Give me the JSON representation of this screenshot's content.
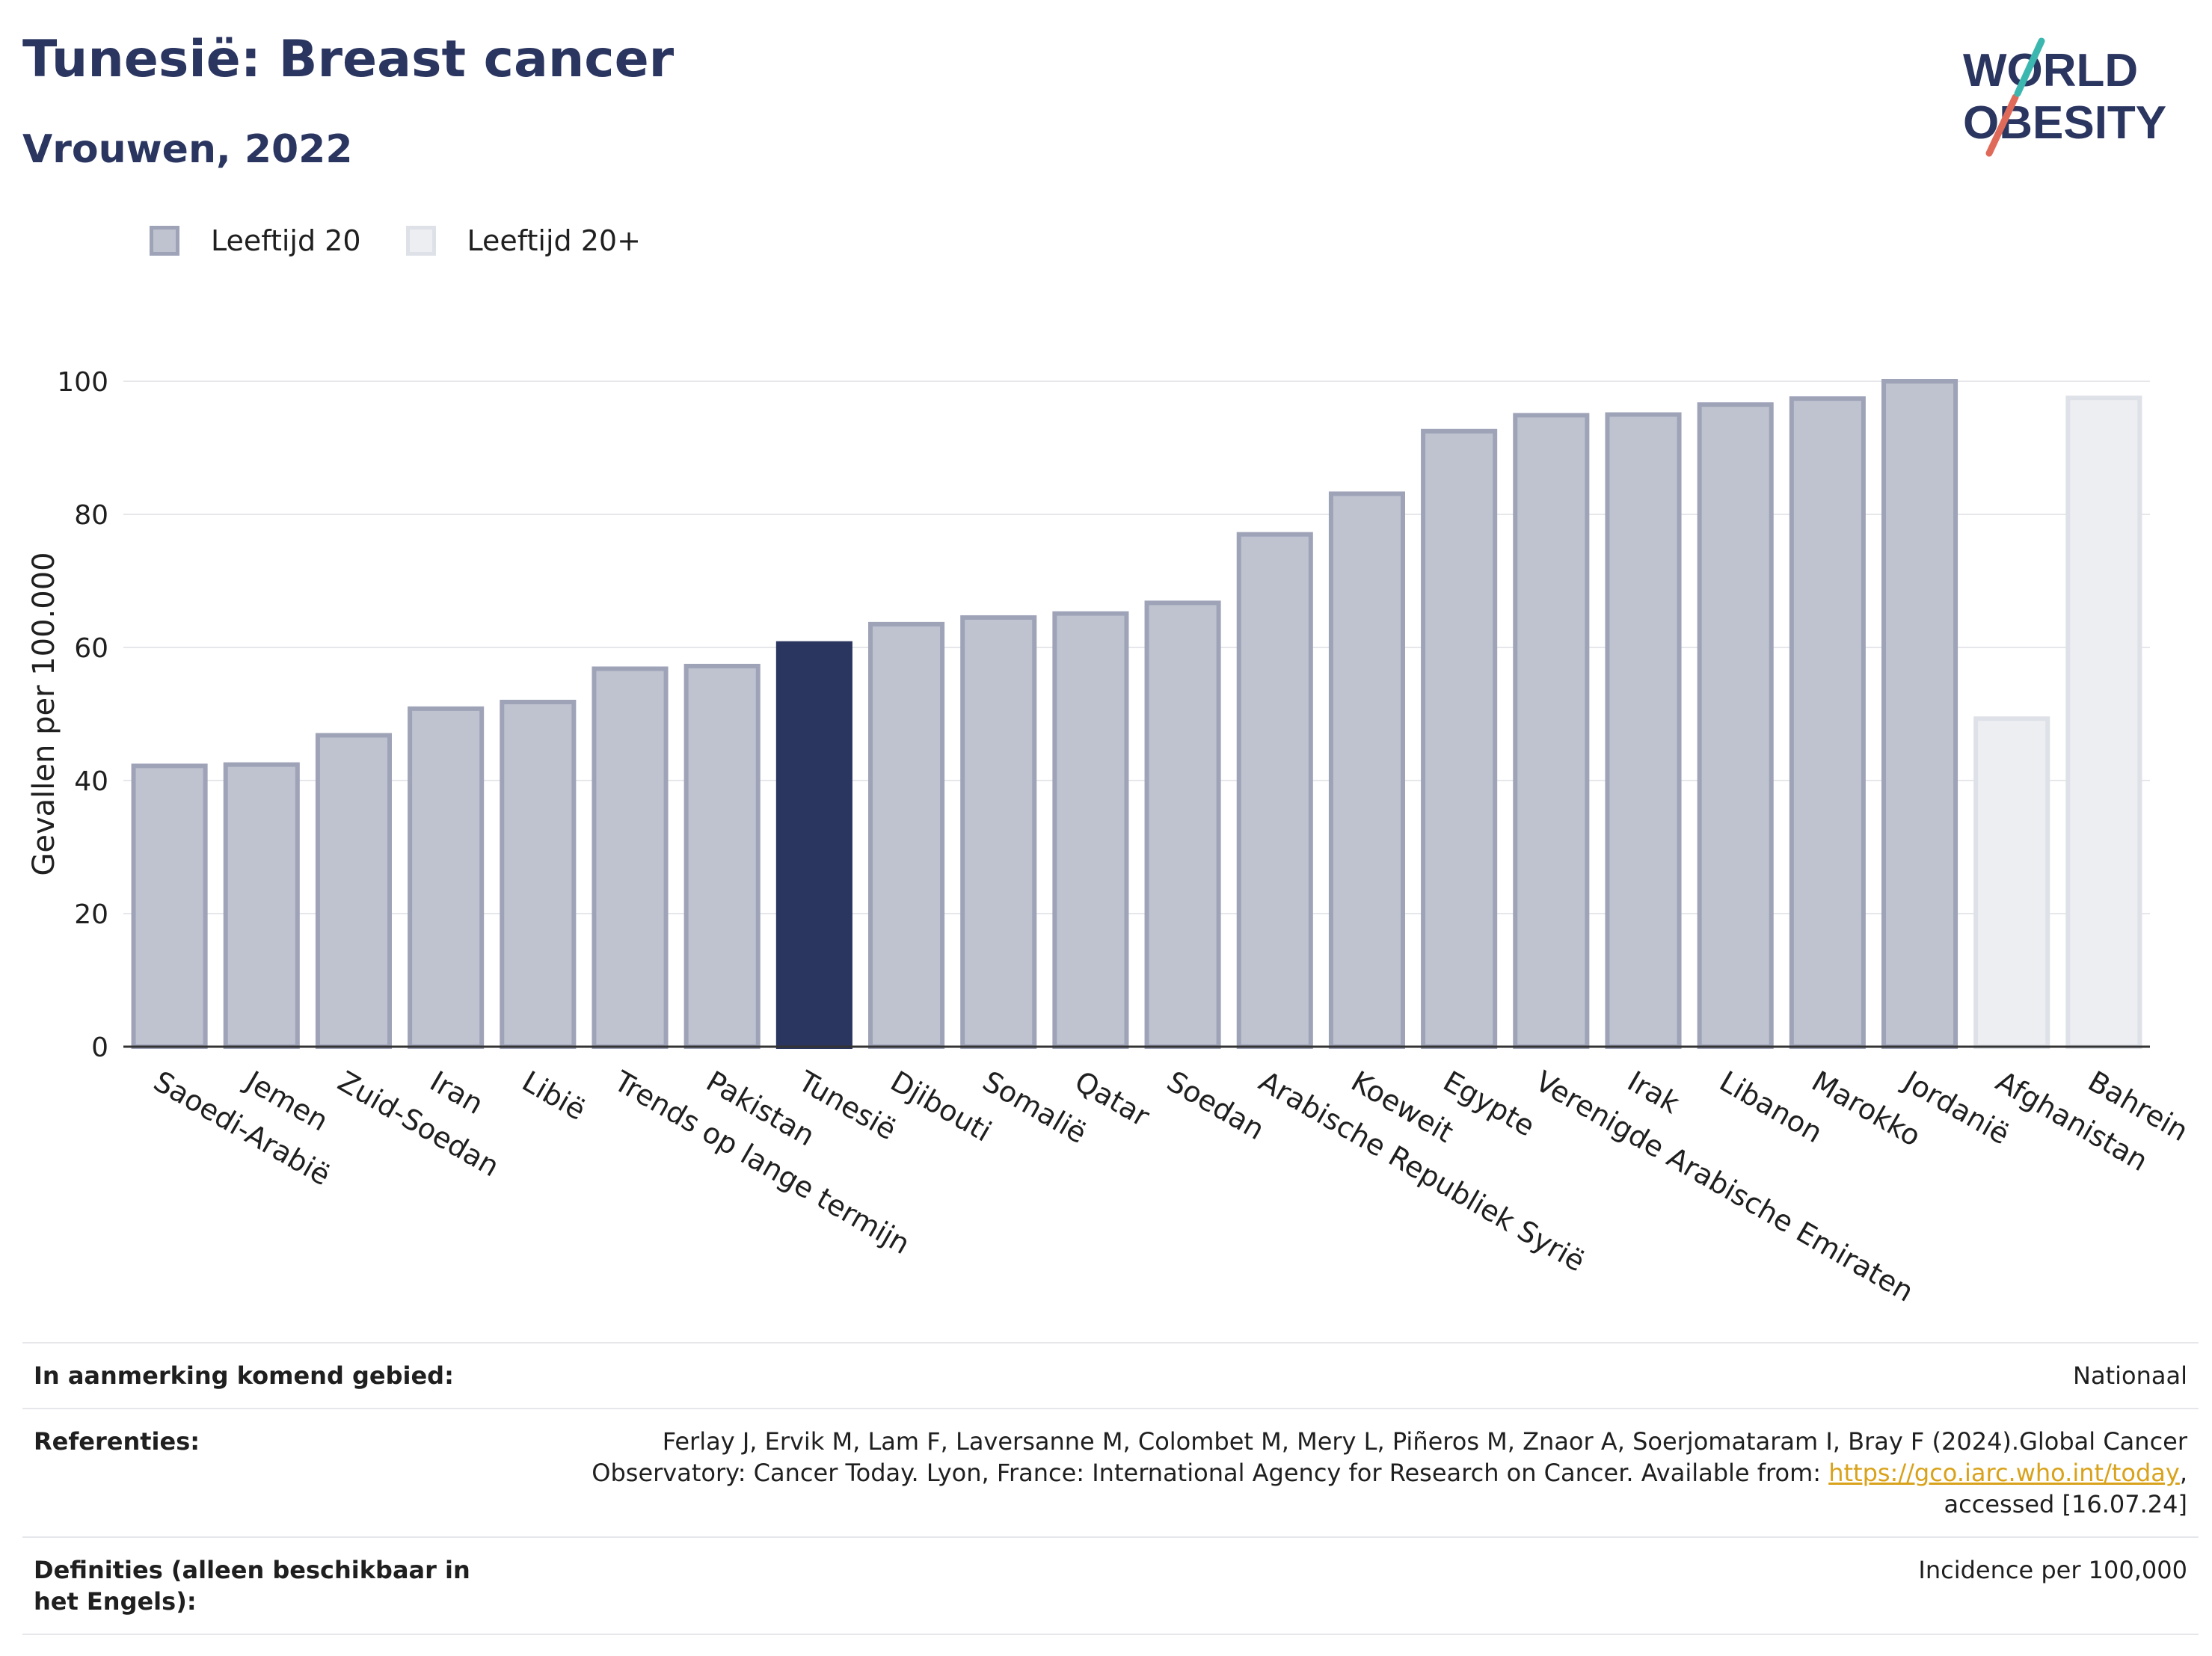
{
  "header": {
    "title": "Tunesië: Breast cancer",
    "subtitle": "Vrouwen, 2022"
  },
  "logo": {
    "line1": "WORLD",
    "line2": "OBESITY"
  },
  "legend": [
    {
      "label": "Leeftijd 20",
      "color": "#bfc3d0"
    },
    {
      "label": "Leeftijd 20+",
      "color": "#eceef2"
    }
  ],
  "chart_data": {
    "type": "bar",
    "ylabel": "Gevallen per 100.000",
    "ylim": [
      0,
      100
    ],
    "yticks": [
      0,
      20,
      40,
      60,
      80,
      100
    ],
    "grid": true,
    "legend_position": "top-left",
    "categories": [
      "Saoedi-Arabië",
      "Jemen",
      "Zuid-Soedan",
      "Iran",
      "Libië",
      "Trends op lange termijn",
      "Pakistan",
      "Tunesië",
      "Djibouti",
      "Somalië",
      "Qatar",
      "Soedan",
      "Arabische Republiek Syrië",
      "Koeweit",
      "Egypte",
      "Verenigde Arabische Emiraten",
      "Irak",
      "Libanon",
      "Marokko",
      "Jordanië",
      "Afghanistan",
      "Bahrein"
    ],
    "values": [
      42.2,
      42.4,
      46.8,
      50.8,
      51.8,
      56.8,
      57.2,
      60.6,
      63.5,
      64.5,
      65.1,
      66.7,
      77.0,
      83.1,
      92.5,
      94.9,
      95.0,
      96.5,
      97.4,
      100.0,
      49.3,
      97.5
    ],
    "groups": [
      "Leeftijd 20",
      "Leeftijd 20",
      "Leeftijd 20",
      "Leeftijd 20",
      "Leeftijd 20",
      "Leeftijd 20",
      "Leeftijd 20",
      "Leeftijd 20",
      "Leeftijd 20",
      "Leeftijd 20",
      "Leeftijd 20",
      "Leeftijd 20",
      "Leeftijd 20",
      "Leeftijd 20",
      "Leeftijd 20",
      "Leeftijd 20",
      "Leeftijd 20",
      "Leeftijd 20",
      "Leeftijd 20",
      "Leeftijd 20",
      "Leeftijd 20+",
      "Leeftijd 20+"
    ],
    "highlight": "Tunesië",
    "colors": {
      "group1_fill": "#bfc3d0",
      "group1_stroke": "#9ea3b8",
      "group2_fill": "#eceef2",
      "group2_stroke": "#dfe1e8",
      "highlight": "#2a3560"
    }
  },
  "footer": {
    "area_label": "In aanmerking komend gebied:",
    "area_value": "Nationaal",
    "refs_label": "Referenties:",
    "refs_text": "Ferlay J, Ervik M, Lam F, Laversanne M, Colombet M, Mery L, Piñeros M, Znaor A, Soerjomataram I, Bray F (2024).Global Cancer Observatory: Cancer Today. Lyon, France: International Agency for Research on Cancer. Available from: ",
    "refs_link": "https://gco.iarc.who.int/today",
    "refs_tail": ", accessed [16.07.24]",
    "defs_label": "Definities (alleen beschikbaar in het Engels):",
    "defs_value": "Incidence per 100,000"
  }
}
